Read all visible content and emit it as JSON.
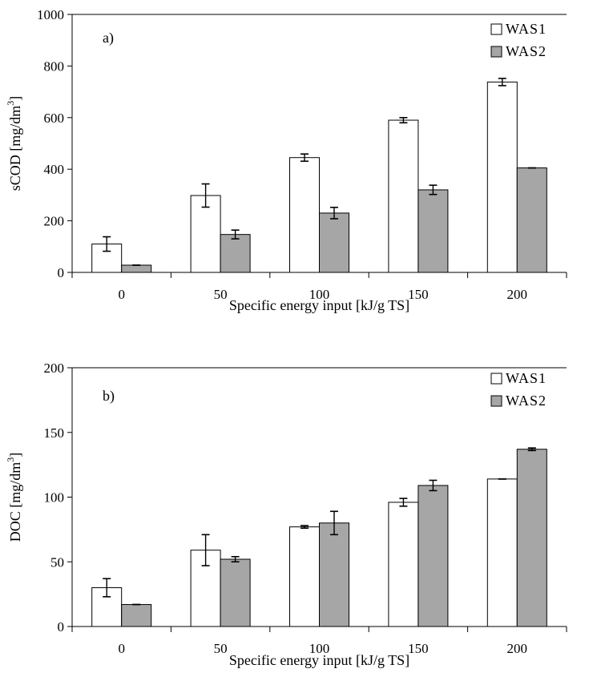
{
  "colors": {
    "WAS1": "#ffffff",
    "WAS2": "#a6a6a6",
    "outline": "#000000"
  },
  "chart_data": [
    {
      "type": "bar",
      "panel_label": "a)",
      "categories": [
        "0",
        "50",
        "100",
        "150",
        "200"
      ],
      "series": [
        {
          "name": "WAS1",
          "values": [
            110,
            298,
            445,
            590,
            738
          ],
          "errors": [
            28,
            45,
            14,
            10,
            14
          ]
        },
        {
          "name": "WAS2",
          "values": [
            28,
            147,
            230,
            320,
            405
          ],
          "errors": [
            0,
            17,
            22,
            18,
            0
          ]
        }
      ],
      "xlabel": "Specific energy input [kJ/g TS]",
      "ylabel": "sCOD [mg/dm",
      "ylabel_sup": "3",
      "ylabel_end": "]",
      "ylim": [
        0,
        1000
      ],
      "yticks": [
        "0",
        "200",
        "400",
        "600",
        "800",
        "1000"
      ],
      "legend": "top-right",
      "grid": false
    },
    {
      "type": "bar",
      "panel_label": "b)",
      "categories": [
        "0",
        "50",
        "100",
        "150",
        "200"
      ],
      "series": [
        {
          "name": "WAS1",
          "values": [
            30,
            59,
            77,
            96,
            114
          ],
          "errors": [
            7,
            12,
            1,
            3,
            0
          ]
        },
        {
          "name": "WAS2",
          "values": [
            17,
            52,
            80,
            109,
            137
          ],
          "errors": [
            0,
            2,
            9,
            4,
            1
          ]
        }
      ],
      "xlabel": "Specific energy input [kJ/g TS]",
      "ylabel": "DOC [mg/dm",
      "ylabel_sup": "3",
      "ylabel_end": "]",
      "ylim": [
        0,
        200
      ],
      "yticks": [
        "0",
        "50",
        "100",
        "150",
        "200"
      ],
      "legend": "top-right",
      "grid": false
    }
  ]
}
